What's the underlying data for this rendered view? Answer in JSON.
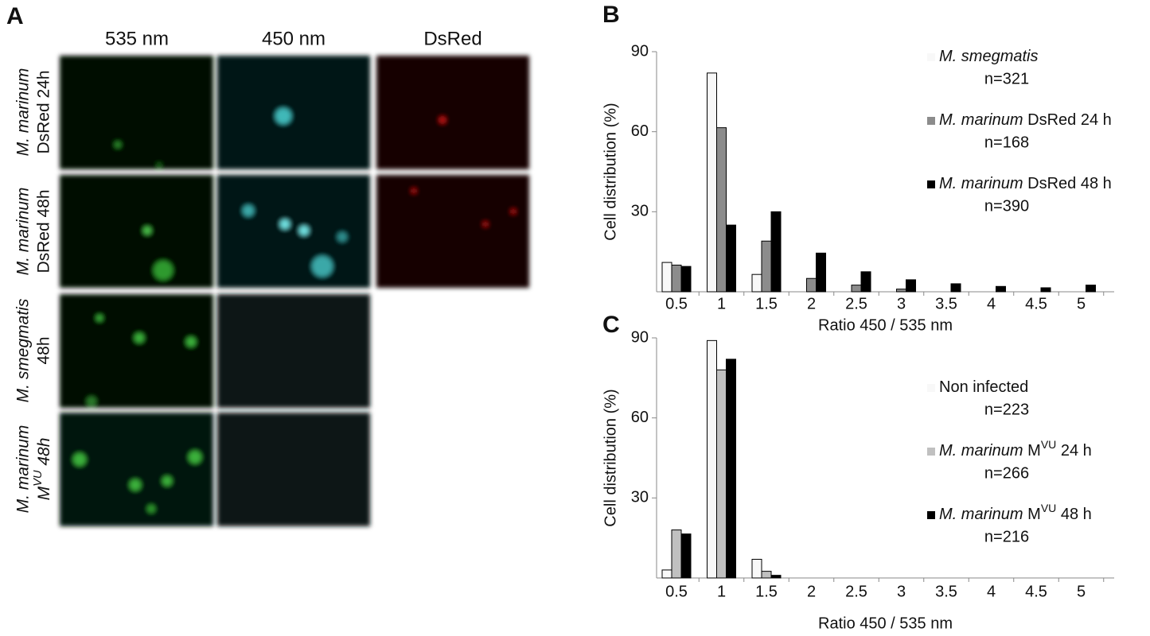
{
  "panel_a": {
    "letter": "A",
    "columns": [
      "535 nm",
      "450 nm",
      "DsRed"
    ],
    "rows": [
      [
        "M. marinum",
        "DsRed 24h"
      ],
      [
        "M. marinum",
        "DsRed 48h"
      ],
      [
        "M. smegmatis",
        "48h"
      ],
      [
        "M. marinum",
        "MVU 48h"
      ]
    ]
  },
  "chart_data": [
    {
      "type": "bar",
      "letter": "B",
      "x_label": "Ratio 450 / 535 nm",
      "y_label": "Cell distribution (%)",
      "categories": [
        "0.5",
        "1",
        "1.5",
        "2",
        "2.5",
        "3",
        "3.5",
        "4",
        "4.5",
        "5"
      ],
      "ylim": [
        0,
        90
      ],
      "yticks": [
        30,
        60,
        90
      ],
      "series": [
        {
          "name": "M. smegmatis",
          "n": "n=321",
          "color": "#f8f8f8",
          "values": [
            11,
            82,
            6.5,
            0,
            0,
            0,
            0,
            0,
            0,
            0
          ]
        },
        {
          "name": "M. marinum DsRed 24 h",
          "n": "n=168",
          "color": "#8c8c8c",
          "values": [
            10,
            61.5,
            19,
            5,
            2.5,
            1,
            0,
            0,
            0,
            0
          ]
        },
        {
          "name": "M. marinum DsRed 48 h",
          "n": "n=390",
          "color": "#000000",
          "values": [
            9.5,
            25,
            30,
            14.5,
            7.5,
            4.5,
            3,
            2,
            1.5,
            2.5
          ]
        }
      ]
    },
    {
      "type": "bar",
      "letter": "C",
      "x_label": "Ratio 450 / 535 nm",
      "y_label": "Cell distribution (%)",
      "categories": [
        "0.5",
        "1",
        "1.5",
        "2",
        "2.5",
        "3",
        "3.5",
        "4",
        "4.5",
        "5"
      ],
      "ylim": [
        0,
        90
      ],
      "yticks": [
        30,
        60,
        90
      ],
      "series": [
        {
          "name": "Non infected",
          "n": "n=223",
          "color": "#f8f8f8",
          "values": [
            3,
            89,
            7,
            0,
            0,
            0,
            0,
            0,
            0,
            0
          ]
        },
        {
          "name": "M. marinum MVU 24 h",
          "n": "n=266",
          "color": "#c0c0c0",
          "values": [
            18,
            78,
            2.5,
            0,
            0,
            0,
            0,
            0,
            0,
            0
          ]
        },
        {
          "name": "M. marinum MVU 48 h",
          "n": "n=216",
          "color": "#000000",
          "values": [
            16.5,
            82,
            1,
            0,
            0,
            0,
            0,
            0,
            0,
            0
          ]
        }
      ]
    }
  ]
}
